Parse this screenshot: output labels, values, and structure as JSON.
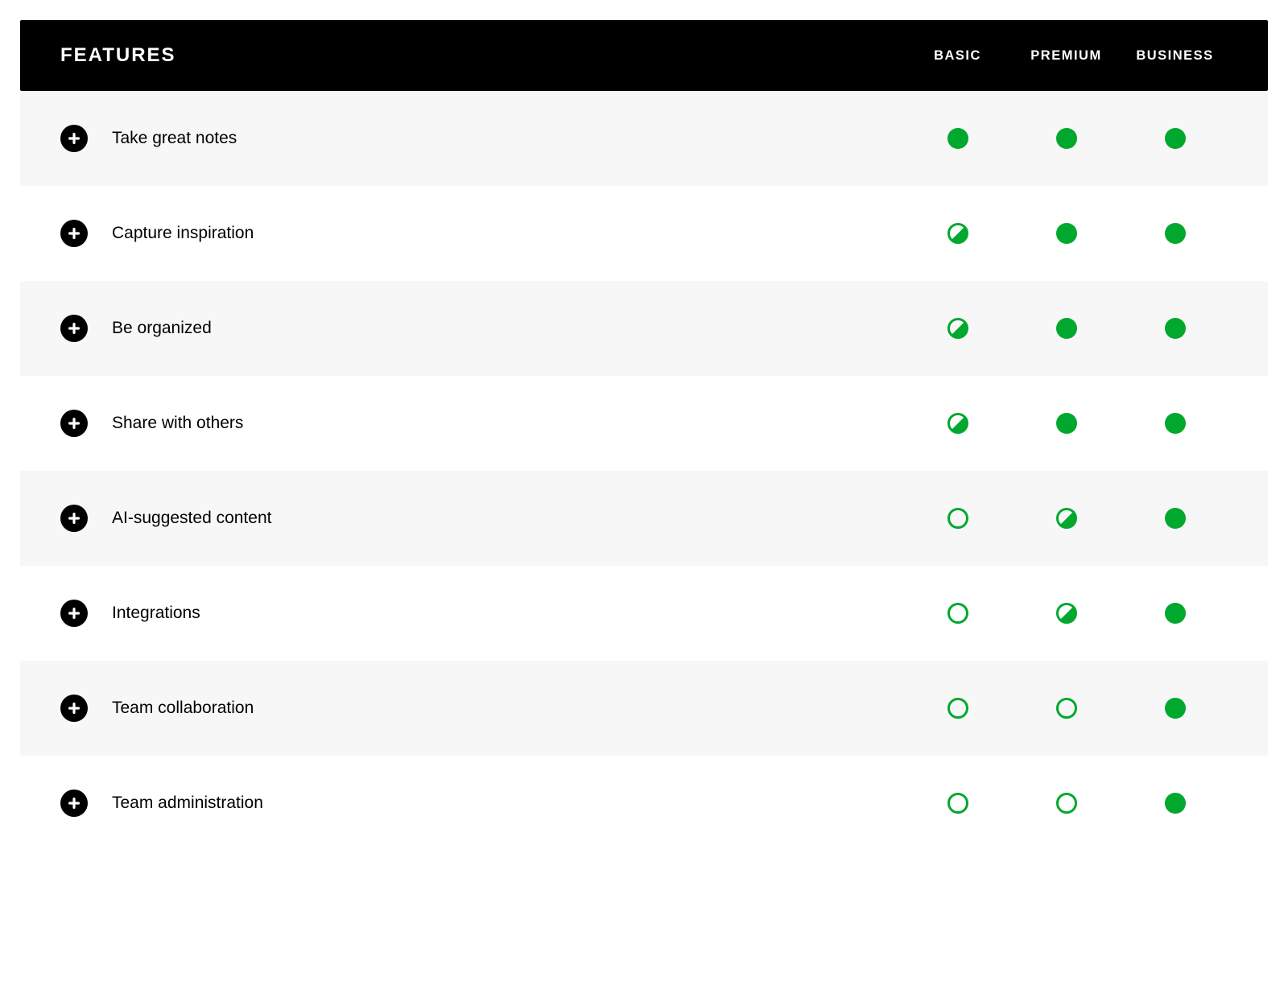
{
  "colors": {
    "header_bg": "#000000",
    "header_text": "#ffffff",
    "row_odd_bg": "#f7f7f7",
    "row_even_bg": "#ffffff",
    "dot_green": "#00a82d",
    "expand_bg": "#000000",
    "expand_plus": "#ffffff"
  },
  "header": {
    "title": "FEATURES",
    "plans": [
      "BASIC",
      "PREMIUM",
      "BUSINESS"
    ]
  },
  "dot_states": {
    "full": "filled green circle",
    "half": "green ring half-filled diagonally",
    "empty": "green ring outline only"
  },
  "rows": [
    {
      "label": "Take great notes",
      "cells": [
        "full",
        "full",
        "full"
      ]
    },
    {
      "label": "Capture inspiration",
      "cells": [
        "half",
        "full",
        "full"
      ]
    },
    {
      "label": "Be organized",
      "cells": [
        "half",
        "full",
        "full"
      ]
    },
    {
      "label": "Share with others",
      "cells": [
        "half",
        "full",
        "full"
      ]
    },
    {
      "label": "AI-suggested content",
      "cells": [
        "empty",
        "half",
        "full"
      ]
    },
    {
      "label": "Integrations",
      "cells": [
        "empty",
        "half",
        "full"
      ]
    },
    {
      "label": "Team collaboration",
      "cells": [
        "empty",
        "empty",
        "full"
      ]
    },
    {
      "label": "Team administration",
      "cells": [
        "empty",
        "empty",
        "full"
      ]
    }
  ]
}
